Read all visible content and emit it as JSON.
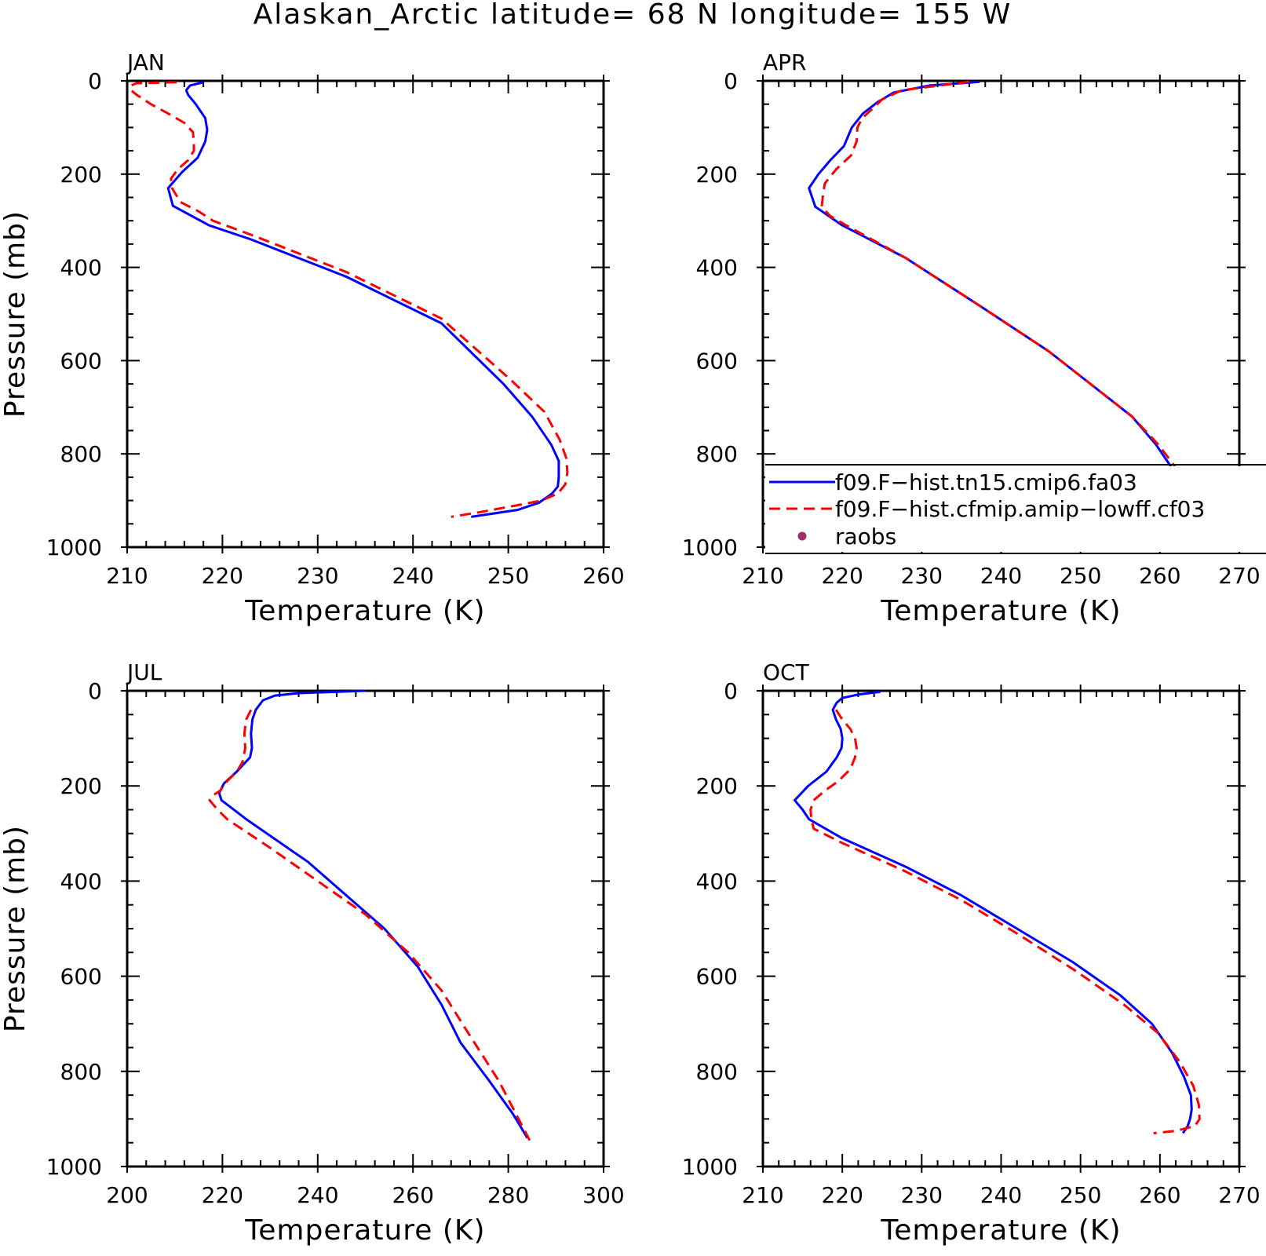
{
  "figure": {
    "title": "Alaskan_Arctic  latitude= 68 N longitude= 155 W"
  },
  "legend": {
    "entries": [
      {
        "label": "f09.F−hist.tn15.cmip6.fa03",
        "color": "#0000ff",
        "style": "solid"
      },
      {
        "label": "f09.F−hist.cfmip.amip−lowff.cf03",
        "color": "#ff0000",
        "style": "dashed"
      },
      {
        "label": "raobs",
        "color": "#a0306a",
        "style": "dot"
      }
    ],
    "placement": "lower-right of APR panel"
  },
  "chart_data": [
    {
      "type": "line",
      "panel": "JAN",
      "xlabel": "Temperature (K)",
      "ylabel": "Pressure (mb)",
      "xlim": [
        210,
        260
      ],
      "ylim": [
        1000,
        0
      ],
      "xticks": [
        "210",
        "220",
        "230",
        "240",
        "250",
        "260"
      ],
      "yticks": [
        "0",
        "200",
        "400",
        "600",
        "800",
        "1000"
      ],
      "series": [
        {
          "color": "#0000ff",
          "style": "solid",
          "x": [
            218,
            216.6,
            216.2,
            216.4,
            217.2,
            218.2,
            218.4,
            218.2,
            217.4,
            215.8,
            214.3,
            214.8,
            216.8,
            218.6,
            223,
            233,
            243,
            249.5,
            252.5,
            254.5,
            255.3,
            255.3,
            255.2,
            254.6,
            253.2,
            251.0,
            246.1
          ],
          "y": [
            3,
            10,
            20,
            30,
            50,
            80,
            105,
            130,
            165,
            195,
            230,
            268,
            290,
            310,
            340,
            420,
            520,
            650,
            720,
            780,
            815,
            850,
            870,
            885,
            905,
            920,
            935
          ]
        },
        {
          "color": "#ff0000",
          "style": "dashed",
          "x": [
            215.2,
            211.0,
            210.4,
            210.4,
            211.0,
            212.5,
            214.3,
            216.0,
            216.9,
            217.0,
            217.0,
            216.4,
            215.3,
            214.6,
            214.7,
            215.6,
            217.5,
            219.0,
            223,
            233,
            243,
            250.2,
            253.8,
            255.4,
            256.1,
            256.2,
            256.0,
            255.2,
            253.5,
            251.0,
            247.0,
            244.0
          ],
          "y": [
            3,
            5,
            10,
            20,
            30,
            50,
            70,
            90,
            110,
            130,
            150,
            170,
            190,
            210,
            230,
            260,
            280,
            300,
            330,
            410,
            510,
            640,
            710,
            770,
            810,
            840,
            865,
            885,
            900,
            910,
            925,
            935
          ]
        }
      ]
    },
    {
      "type": "line",
      "panel": "APR",
      "xlabel": "Temperature (K)",
      "ylabel": "",
      "xlim": [
        210,
        270
      ],
      "ylim": [
        1000,
        0
      ],
      "xticks": [
        "210",
        "220",
        "230",
        "240",
        "250",
        "260",
        "270"
      ],
      "yticks": [
        "0",
        "200",
        "400",
        "600",
        "800",
        "1000"
      ],
      "series": [
        {
          "color": "#0000ff",
          "style": "solid",
          "x": [
            237.3,
            231.0,
            226.5,
            224.5,
            222.6,
            221.2,
            220.2,
            218.5,
            217.0,
            215.8,
            216.6,
            220.0,
            228.0,
            238.0,
            246.0,
            252.0,
            256.5,
            259.5,
            261.5,
            262.2,
            262.4,
            262.4,
            261.6,
            259.8
          ],
          "y": [
            2,
            10,
            25,
            45,
            70,
            100,
            140,
            170,
            200,
            230,
            270,
            310,
            380,
            490,
            580,
            660,
            720,
            780,
            830,
            860,
            880,
            900,
            920,
            935
          ]
        },
        {
          "color": "#ff0000",
          "style": "dashed",
          "x": [
            236.0,
            227.5,
            225.0,
            223.8,
            222.5,
            221.9,
            221.8,
            221.1,
            219.2,
            217.8,
            217.6,
            217.4,
            218.5,
            220.5,
            228.0,
            238.0,
            246.0,
            252.0,
            256.5,
            259.8,
            261.8,
            262.6,
            262.7,
            262.5,
            261.2,
            259.0,
            258.0
          ],
          "y": [
            2,
            20,
            40,
            60,
            80,
            100,
            130,
            160,
            190,
            220,
            240,
            270,
            290,
            310,
            380,
            490,
            580,
            660,
            720,
            780,
            825,
            860,
            880,
            900,
            915,
            925,
            930
          ]
        }
      ]
    },
    {
      "type": "line",
      "panel": "JUL",
      "xlabel": "Temperature (K)",
      "ylabel": "Pressure (mb)",
      "xlim": [
        200,
        300
      ],
      "ylim": [
        1000,
        0
      ],
      "xticks": [
        "200",
        "220",
        "240",
        "260",
        "280",
        "300"
      ],
      "yticks": [
        "0",
        "200",
        "400",
        "600",
        "800",
        "1000"
      ],
      "series": [
        {
          "color": "#0000ff",
          "style": "solid",
          "x": [
            250,
            236.0,
            231.0,
            228.5,
            227.0,
            226.3,
            226.0,
            226.2,
            225.8,
            223.0,
            220.3,
            219.3,
            219.8,
            225.0,
            238.0,
            246.0,
            254.0,
            261.0,
            266.0,
            270.0,
            276.0,
            281.0,
            284.0
          ],
          "y": [
            0,
            5,
            10,
            20,
            40,
            60,
            90,
            120,
            140,
            170,
            195,
            215,
            230,
            270,
            360,
            430,
            500,
            580,
            660,
            740,
            820,
            890,
            940
          ]
        },
        {
          "color": "#ff0000",
          "style": "dashed",
          "x": [
            226.0,
            225.0,
            224.6,
            224.8,
            224.2,
            223.0,
            221.0,
            219.5,
            218.0,
            217.3,
            219.0,
            221.0,
            230.0,
            240.0,
            250.0,
            259.0,
            266.0,
            271.0,
            278.0,
            284.5
          ],
          "y": [
            40,
            60,
            90,
            120,
            150,
            170,
            190,
            210,
            220,
            230,
            250,
            270,
            330,
            400,
            470,
            550,
            630,
            710,
            820,
            945
          ]
        }
      ]
    },
    {
      "type": "line",
      "panel": "OCT",
      "xlabel": "Temperature (K)",
      "ylabel": "",
      "xlim": [
        210,
        270
      ],
      "ylim": [
        1000,
        0
      ],
      "xticks": [
        "210",
        "220",
        "230",
        "240",
        "250",
        "260",
        "270"
      ],
      "yticks": [
        "0",
        "200",
        "400",
        "600",
        "800",
        "1000"
      ],
      "series": [
        {
          "color": "#0000ff",
          "style": "solid",
          "x": [
            224.8,
            222.0,
            220.0,
            219.3,
            218.8,
            219.2,
            219.8,
            220.0,
            219.9,
            219.3,
            218.0,
            215.7,
            214.0,
            215.0,
            215.8,
            220.0,
            228.0,
            235.0,
            242.0,
            249.0,
            255.0,
            259.0,
            261.5,
            263.0,
            263.9,
            264.0,
            263.8,
            263.5,
            262.9
          ],
          "y": [
            2,
            8,
            15,
            25,
            40,
            60,
            80,
            100,
            120,
            140,
            170,
            200,
            230,
            250,
            270,
            310,
            370,
            430,
            500,
            570,
            640,
            700,
            760,
            810,
            850,
            880,
            900,
            915,
            930
          ]
        },
        {
          "color": "#ff0000",
          "style": "dashed",
          "x": [
            219.2,
            220.0,
            221.0,
            221.6,
            221.8,
            221.6,
            221.0,
            219.5,
            217.8,
            216.4,
            216.0,
            216.1,
            216.4,
            220.0,
            228.0,
            235.0,
            242.0,
            249.5,
            255.5,
            259.8,
            262.5,
            264.2,
            264.9,
            265.0,
            264.4,
            262.0,
            259.2
          ],
          "y": [
            40,
            60,
            80,
            100,
            120,
            140,
            165,
            190,
            210,
            230,
            250,
            270,
            290,
            320,
            380,
            440,
            510,
            590,
            660,
            720,
            780,
            830,
            870,
            900,
            915,
            925,
            930
          ]
        }
      ]
    }
  ]
}
